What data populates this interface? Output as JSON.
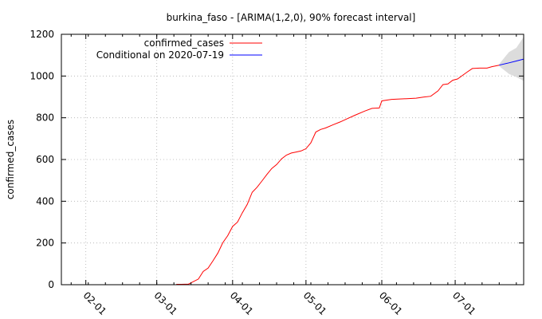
{
  "chart_data": {
    "type": "line",
    "title": "burkina_faso -  [ARIMA(1,2,0), 90% forecast interval]",
    "xlabel": "",
    "ylabel": "confirmed_cases",
    "x_axis": {
      "type": "date",
      "range": [
        "2020-01-22",
        "2020-07-29"
      ]
    },
    "ylim": [
      0,
      1200
    ],
    "yticks": [
      0,
      200,
      400,
      600,
      800,
      1000,
      1200
    ],
    "xticks": [
      {
        "date": "2020-02-01",
        "label": "02-01"
      },
      {
        "date": "2020-03-01",
        "label": "03-01"
      },
      {
        "date": "2020-04-01",
        "label": "04-01"
      },
      {
        "date": "2020-05-01",
        "label": "05-01"
      },
      {
        "date": "2020-06-01",
        "label": "06-01"
      },
      {
        "date": "2020-07-01",
        "label": "07-01"
      }
    ],
    "grid": true,
    "legend_position": "top-left",
    "series": [
      {
        "name": "confirmed_cases",
        "color": "#ff0000",
        "points": [
          [
            "2020-03-09",
            2
          ],
          [
            "2020-03-11",
            2
          ],
          [
            "2020-03-14",
            3
          ],
          [
            "2020-03-16",
            15
          ],
          [
            "2020-03-18",
            27
          ],
          [
            "2020-03-20",
            64
          ],
          [
            "2020-03-22",
            80
          ],
          [
            "2020-03-24",
            115
          ],
          [
            "2020-03-26",
            152
          ],
          [
            "2020-03-28",
            201
          ],
          [
            "2020-03-30",
            235
          ],
          [
            "2020-04-01",
            279
          ],
          [
            "2020-04-03",
            300
          ],
          [
            "2020-04-05",
            345
          ],
          [
            "2020-04-07",
            385
          ],
          [
            "2020-04-09",
            443
          ],
          [
            "2020-04-11",
            467
          ],
          [
            "2020-04-13",
            497
          ],
          [
            "2020-04-15",
            528
          ],
          [
            "2020-04-17",
            557
          ],
          [
            "2020-04-19",
            576
          ],
          [
            "2020-04-21",
            603
          ],
          [
            "2020-04-23",
            621
          ],
          [
            "2020-04-25",
            631
          ],
          [
            "2020-04-27",
            636
          ],
          [
            "2020-04-29",
            641
          ],
          [
            "2020-05-01",
            652
          ],
          [
            "2020-05-03",
            680
          ],
          [
            "2020-05-05",
            732
          ],
          [
            "2020-05-07",
            744
          ],
          [
            "2020-05-09",
            751
          ],
          [
            "2020-05-12",
            766
          ],
          [
            "2020-05-15",
            780
          ],
          [
            "2020-05-18",
            796
          ],
          [
            "2020-05-21",
            812
          ],
          [
            "2020-05-25",
            832
          ],
          [
            "2020-05-28",
            845
          ],
          [
            "2020-05-31",
            847
          ],
          [
            "2020-06-01",
            881
          ],
          [
            "2020-06-05",
            888
          ],
          [
            "2020-06-10",
            891
          ],
          [
            "2020-06-15",
            894
          ],
          [
            "2020-06-18",
            899
          ],
          [
            "2020-06-21",
            903
          ],
          [
            "2020-06-24",
            929
          ],
          [
            "2020-06-26",
            959
          ],
          [
            "2020-06-28",
            962
          ],
          [
            "2020-06-30",
            980
          ],
          [
            "2020-07-02",
            986
          ],
          [
            "2020-07-04",
            1003
          ],
          [
            "2020-07-06",
            1020
          ],
          [
            "2020-07-08",
            1036
          ],
          [
            "2020-07-11",
            1038
          ],
          [
            "2020-07-14",
            1038
          ],
          [
            "2020-07-16",
            1045
          ],
          [
            "2020-07-19",
            1052
          ]
        ]
      },
      {
        "name": "Conditional on 2020-07-19",
        "color": "#0000ff",
        "points": [
          [
            "2020-07-19",
            1052
          ],
          [
            "2020-07-23",
            1063
          ],
          [
            "2020-07-26",
            1072
          ],
          [
            "2020-07-29",
            1081
          ]
        ],
        "interval": {
          "label": "90% forecast interval",
          "color": "#d3d3d3",
          "points": [
            [
              "2020-07-19",
              1047,
              1057
            ],
            [
              "2020-07-23",
              1010,
              1115
            ],
            [
              "2020-07-26",
              995,
              1135
            ],
            [
              "2020-07-29",
              977,
              1187
            ]
          ]
        }
      }
    ]
  }
}
